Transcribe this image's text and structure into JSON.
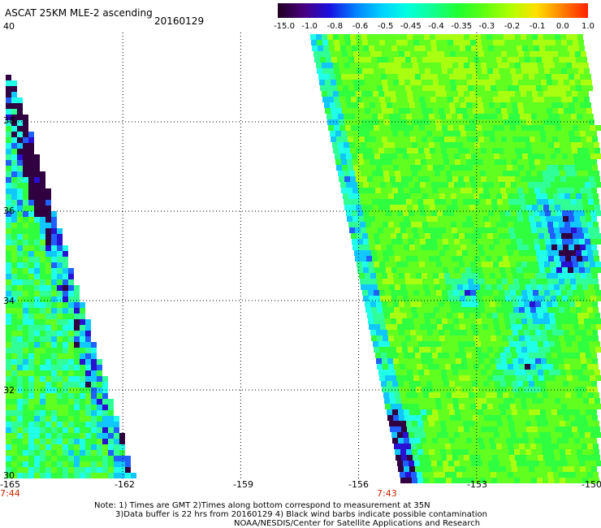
{
  "header": {
    "title": "ASCAT 25KM MLE-2 ascending",
    "date": "20160129"
  },
  "colorbar": {
    "labels": [
      "-15.0",
      "-1.0",
      "-0.8",
      "-0.6",
      "-0.5",
      "-0.45",
      "-0.4",
      "-0.35",
      "-0.3",
      "-0.2",
      "-0.1",
      "0.0",
      "1.0"
    ]
  },
  "axes": {
    "lat_ticks": [
      "40",
      "38",
      "36",
      "34",
      "32",
      "30"
    ],
    "lon_ticks": [
      "-165",
      "-162",
      "-159",
      "-156",
      "-153",
      "-150"
    ],
    "lat_range": [
      30,
      40
    ],
    "lon_range": [
      -165,
      -150
    ]
  },
  "passes": {
    "left_time": "7:44",
    "right_time": "7:43"
  },
  "notes": {
    "line1": "Note: 1) Times are GMT 2)Times along bottom correspond to measurement at 35N",
    "line2": "3)Data buffer is 22 hrs from 20160129 4) Black wind barbs indicate possible contamination",
    "line3": "NOAA/NESDIS/Center for Satellite Applications and Research"
  },
  "colors": {
    "scale": [
      "#200020",
      "#4a0080",
      "#1a10e0",
      "#0080ff",
      "#00d0ff",
      "#00ffe0",
      "#10ff90",
      "#20ff30",
      "#60ff10",
      "#b0ff00",
      "#ffe000",
      "#ff8000",
      "#ff2000"
    ],
    "background": "#ffffff"
  }
}
